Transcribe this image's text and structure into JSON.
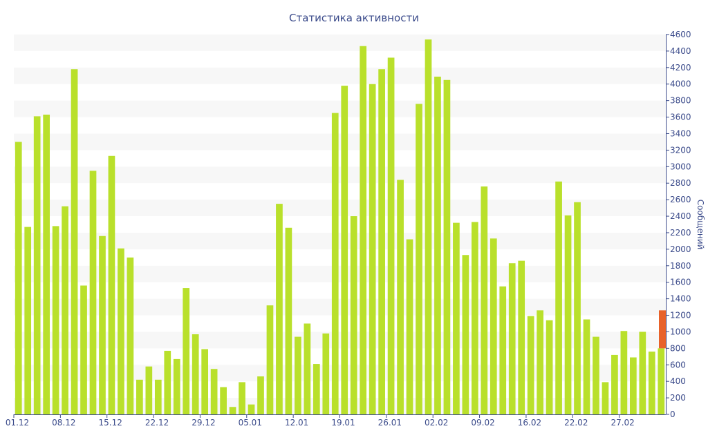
{
  "chart_data": {
    "type": "bar",
    "title": "Статистика активности",
    "xlabel": "",
    "ylabel": "Сообщений",
    "ylim": [
      0,
      4600
    ],
    "y_ticks": [
      0,
      200,
      400,
      600,
      800,
      1000,
      1200,
      1400,
      1600,
      1800,
      2000,
      2200,
      2400,
      2600,
      2800,
      3000,
      3200,
      3400,
      3600,
      3800,
      4000,
      4200,
      4400,
      4600
    ],
    "x_tick_labels": [
      {
        "index": 0,
        "label": "01.12"
      },
      {
        "index": 5,
        "label": "08.12"
      },
      {
        "index": 10,
        "label": "15.12"
      },
      {
        "index": 15,
        "label": "22.12"
      },
      {
        "index": 20,
        "label": "29.12"
      },
      {
        "index": 25,
        "label": "05.01"
      },
      {
        "index": 30,
        "label": "12.01"
      },
      {
        "index": 35,
        "label": "19.01"
      },
      {
        "index": 40,
        "label": "26.01"
      },
      {
        "index": 45,
        "label": "02.02"
      },
      {
        "index": 50,
        "label": "09.02"
      },
      {
        "index": 55,
        "label": "16.02"
      },
      {
        "index": 60,
        "label": "22.02"
      },
      {
        "index": 65,
        "label": "27.02"
      }
    ],
    "grid": "horizontal-bands",
    "colors": {
      "bar": "#b9e02b",
      "highlight": "#e8622a",
      "band": "#f7f7f7",
      "text": "#3a4a8a",
      "axis": "#3a4a8a"
    },
    "values": [
      3300,
      2270,
      3610,
      3630,
      2280,
      2520,
      4180,
      1560,
      2950,
      2160,
      3130,
      2010,
      1900,
      420,
      580,
      420,
      770,
      670,
      1530,
      970,
      790,
      550,
      330,
      90,
      390,
      120,
      460,
      1320,
      2550,
      2260,
      940,
      1100,
      610,
      980,
      3650,
      3980,
      2400,
      4460,
      4000,
      4180,
      4320,
      2840,
      2120,
      3760,
      4540,
      4090,
      4050,
      2320,
      1930,
      2330,
      2760,
      2130,
      1550,
      1830,
      1860,
      1190,
      1260,
      1140,
      2820,
      2410,
      2570,
      1150,
      940,
      390,
      720,
      1010,
      690,
      1000,
      760,
      800
    ],
    "highlight": {
      "low": 800,
      "high": 1260
    }
  }
}
